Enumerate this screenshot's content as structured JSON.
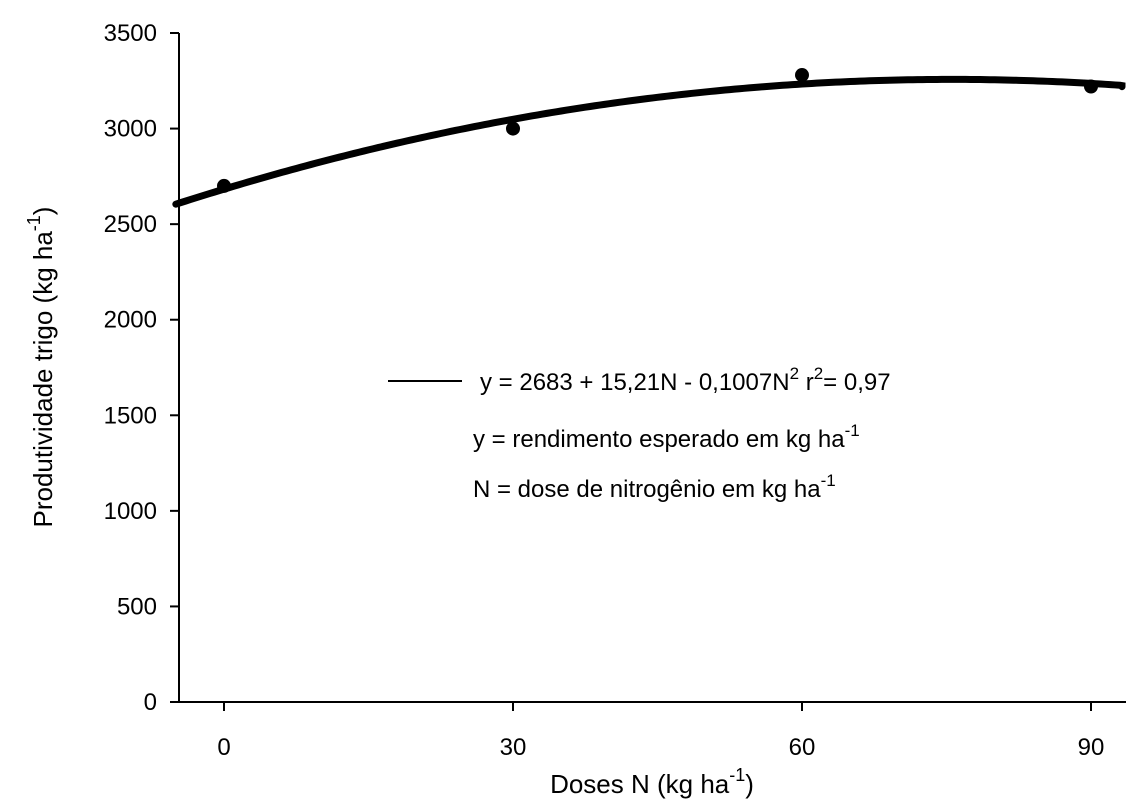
{
  "chart_data": {
    "type": "scatter",
    "xlabel": "Doses N (kg ha",
    "xlabel_sup": "-1",
    "xlabel_close": ")",
    "ylabel": "Produtividade trigo (kg ha",
    "ylabel_sup": "-1",
    "ylabel_close": ")",
    "xlim": [
      -5,
      95
    ],
    "ylim": [
      0,
      3500
    ],
    "x_ticks": [
      0,
      30,
      60,
      90
    ],
    "x_tick_labels": [
      "0",
      "30",
      "60",
      "90"
    ],
    "y_ticks": [
      0,
      500,
      1000,
      1500,
      2000,
      2500,
      3000,
      3500
    ],
    "y_tick_labels": [
      "0",
      "500",
      "1000",
      "1500",
      "2000",
      "2500",
      "3000",
      "3500"
    ],
    "grid": false,
    "legend_position": "center-right",
    "series": [
      {
        "kind": "points",
        "x": [
          0,
          30,
          60,
          90
        ],
        "y": [
          2700,
          3000,
          3280,
          3220
        ]
      },
      {
        "kind": "fit-curve",
        "model": "quadratic",
        "intercept": 2683,
        "b1": 15.21,
        "b2": -0.1007
      }
    ],
    "annotations": {
      "equation": {
        "main": "y = 2683 + 15,21N - 0,1007N",
        "sup1": "2",
        "mid": " r",
        "sup2": "2",
        "end": "= 0,97"
      },
      "note_y": {
        "text": "y  = rendimento esperado em kg ha",
        "sup": "-1"
      },
      "note_n": {
        "text": "N = dose de nitrogênio em kg ha",
        "sup": "-1"
      }
    }
  }
}
